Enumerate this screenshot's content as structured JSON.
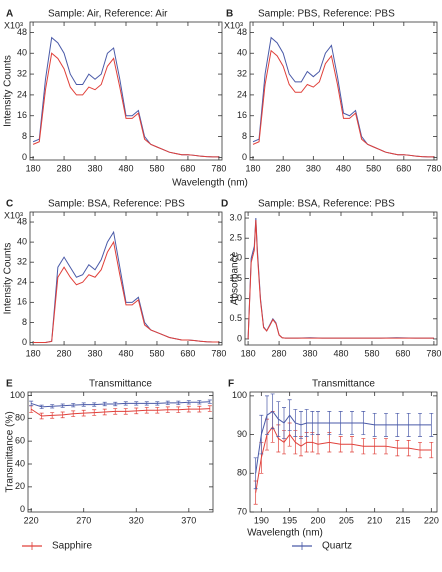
{
  "chart_data": [
    {
      "type": "line",
      "label": "A",
      "title": "Sample: Air, Reference: Air",
      "ylabel": "Intensity Counts",
      "xlabel": "Wavelength (nm)",
      "y_multiplier": "X10³",
      "x": [
        180,
        200,
        220,
        240,
        260,
        280,
        300,
        320,
        340,
        360,
        380,
        400,
        420,
        440,
        460,
        480,
        500,
        520,
        540,
        560,
        580,
        600,
        620,
        640,
        660,
        680,
        700,
        720,
        740,
        760,
        780
      ],
      "series": [
        {
          "color": "#4a5aa8",
          "values": [
            6,
            7,
            30,
            46,
            44,
            40,
            32,
            28,
            28,
            32,
            30,
            32,
            40,
            42,
            30,
            16,
            16,
            18,
            8,
            5,
            4,
            3,
            2,
            1.5,
            1,
            1,
            0.8,
            0.5,
            0.3,
            0.2,
            0.2
          ]
        },
        {
          "color": "#e0403a",
          "values": [
            5,
            6,
            26,
            40,
            38,
            34,
            27,
            24,
            24,
            27,
            26,
            28,
            35,
            38,
            27,
            15,
            15,
            17,
            7,
            5,
            4,
            3,
            2,
            1.5,
            1,
            1,
            0.8,
            0.5,
            0.3,
            0.2,
            0.2
          ]
        }
      ],
      "xlim": [
        170,
        790
      ],
      "ylim": [
        -1,
        52
      ],
      "xticks": [
        180,
        280,
        380,
        480,
        580,
        680,
        780
      ],
      "yticks": [
        0,
        8,
        16,
        24,
        32,
        40,
        48
      ]
    },
    {
      "type": "line",
      "label": "B",
      "title": "Sample: PBS, Reference: PBS",
      "y_multiplier": "X10³",
      "x": [
        180,
        200,
        220,
        240,
        260,
        280,
        300,
        320,
        340,
        360,
        380,
        400,
        420,
        440,
        460,
        480,
        500,
        520,
        540,
        560,
        580,
        600,
        620,
        640,
        660,
        680,
        700,
        720,
        740,
        760,
        780
      ],
      "series": [
        {
          "color": "#4a5aa8",
          "values": [
            6,
            7,
            32,
            46,
            44,
            40,
            32,
            29,
            29,
            33,
            31,
            33,
            40,
            43,
            31,
            17,
            16,
            18,
            8,
            5,
            4,
            3,
            2,
            1.5,
            1,
            1,
            0.8,
            0.5,
            0.3,
            0.2,
            0.2
          ]
        },
        {
          "color": "#e0403a",
          "values": [
            5,
            6,
            28,
            41,
            39,
            35,
            28,
            25,
            25,
            28,
            27,
            29,
            36,
            39,
            28,
            15,
            15,
            17,
            7,
            5,
            4,
            3,
            2,
            1.5,
            1,
            1,
            0.8,
            0.5,
            0.3,
            0.2,
            0.2
          ]
        }
      ],
      "xlim": [
        170,
        790
      ],
      "ylim": [
        -1,
        52
      ],
      "xticks": [
        180,
        280,
        380,
        480,
        580,
        680,
        780
      ],
      "yticks": [
        0,
        8,
        16,
        24,
        32,
        40,
        48
      ]
    },
    {
      "type": "line",
      "label": "C",
      "title": "Sample: BSA, Reference: PBS",
      "ylabel": "Intensity Counts",
      "y_multiplier": "X10³",
      "x": [
        180,
        200,
        220,
        240,
        260,
        280,
        300,
        320,
        340,
        360,
        380,
        400,
        420,
        440,
        460,
        480,
        500,
        520,
        540,
        560,
        580,
        600,
        620,
        640,
        660,
        680,
        700,
        720,
        740,
        760,
        780
      ],
      "series": [
        {
          "color": "#4a5aa8",
          "values": [
            0,
            0,
            0,
            0.5,
            30,
            34,
            30,
            26,
            27,
            31,
            29,
            33,
            40,
            44,
            30,
            16,
            16,
            18,
            8,
            5,
            4,
            3,
            2,
            1.5,
            1,
            1,
            0.8,
            0.5,
            0.3,
            0.2,
            0.2
          ]
        },
        {
          "color": "#e0403a",
          "values": [
            0,
            0,
            0,
            0.4,
            26,
            30,
            26,
            23,
            24,
            27,
            26,
            29,
            36,
            40,
            27,
            15,
            15,
            17,
            7,
            5,
            4,
            3,
            2,
            1.5,
            1,
            1,
            0.8,
            0.5,
            0.3,
            0.2,
            0.2
          ]
        }
      ],
      "xlim": [
        170,
        790
      ],
      "ylim": [
        -1,
        52
      ],
      "xticks": [
        180,
        280,
        380,
        480,
        580,
        680,
        780
      ],
      "yticks": [
        0,
        8,
        16,
        24,
        32,
        40,
        48
      ]
    },
    {
      "type": "line",
      "label": "D",
      "title": "Sample: BSA, Reference: PBS",
      "ylabel": "Absorbance",
      "x": [
        180,
        190,
        200,
        205,
        210,
        220,
        230,
        240,
        250,
        260,
        270,
        280,
        290,
        300,
        340,
        380,
        420,
        480,
        540,
        600,
        660,
        720,
        780
      ],
      "series": [
        {
          "color": "#4a5aa8",
          "values": [
            0,
            2.0,
            2.3,
            3.0,
            2.2,
            1.0,
            0.3,
            0.2,
            0.35,
            0.5,
            0.4,
            0.1,
            0.03,
            0.02,
            0.02,
            0.03,
            0.02,
            0.02,
            0.02,
            0.02,
            0.03,
            0.02,
            0.02
          ]
        },
        {
          "color": "#e0403a",
          "values": [
            0,
            1.9,
            2.2,
            2.95,
            2.1,
            0.95,
            0.28,
            0.2,
            0.33,
            0.48,
            0.38,
            0.1,
            0.03,
            0.02,
            0.02,
            0.02,
            0.02,
            0.02,
            0.02,
            0.02,
            0.02,
            0.02,
            0.02
          ]
        }
      ],
      "xlim": [
        170,
        790
      ],
      "ylim": [
        -0.15,
        3.15
      ],
      "xticks": [
        180,
        280,
        380,
        480,
        580,
        680,
        780
      ],
      "yticks": [
        0,
        0.5,
        {
          "value": 1,
          "label": "1.0"
        },
        1.5,
        {
          "value": 2,
          "label": "2.0"
        },
        2.5,
        {
          "value": 3,
          "label": "3.0"
        }
      ]
    },
    {
      "type": "errorline",
      "label": "E",
      "title": "Transmittance",
      "ylabel": "Transmittance (%)",
      "x": [
        220,
        230,
        240,
        250,
        260,
        270,
        280,
        290,
        300,
        310,
        320,
        330,
        340,
        350,
        360,
        370,
        380,
        390
      ],
      "series": [
        {
          "name": "Sapphire",
          "color": "#e0403a",
          "values": [
            88,
            82,
            82.5,
            83,
            84,
            84.5,
            85,
            85.5,
            86,
            86,
            86.5,
            87,
            87,
            87.5,
            87.5,
            88,
            88,
            88.5
          ],
          "errors": [
            3,
            2.5,
            2.5,
            2.5,
            2.5,
            2.5,
            2.5,
            2.5,
            2.5,
            2.5,
            2.5,
            2.5,
            2.5,
            2.5,
            2.5,
            2.5,
            2.5,
            2.5
          ]
        },
        {
          "name": "Quartz",
          "color": "#4a5aa8",
          "values": [
            93,
            90,
            90.5,
            91,
            91.5,
            92,
            92,
            92.5,
            92.5,
            93,
            93,
            93,
            93,
            93.5,
            93.5,
            94,
            94,
            94.5
          ],
          "errors": [
            2,
            1.5,
            1.5,
            1.5,
            1.5,
            1.5,
            1.5,
            1.5,
            1.5,
            1.5,
            1.5,
            1.5,
            1.5,
            1.5,
            1.5,
            1.5,
            1.5,
            1.5
          ]
        }
      ],
      "xlim": [
        217,
        393
      ],
      "ylim": [
        -2,
        103
      ],
      "xticks": [
        220,
        270,
        320,
        370
      ],
      "yticks": [
        0,
        20,
        40,
        60,
        80,
        100
      ]
    },
    {
      "type": "errorline",
      "label": "F",
      "title": "Transmittance",
      "xlabel": "Wavelength (nm)",
      "x": [
        189,
        190,
        191,
        192,
        193,
        194,
        195,
        196,
        197,
        198,
        199,
        200,
        202,
        204,
        206,
        208,
        210,
        212,
        214,
        216,
        218,
        220
      ],
      "series": [
        {
          "color": "#e0403a",
          "values": [
            75,
            84,
            90,
            92,
            89,
            88,
            90,
            88,
            87,
            88,
            88,
            87.5,
            88,
            87.5,
            87.5,
            87,
            87,
            87,
            86.5,
            86.5,
            86,
            86
          ],
          "errors": [
            3,
            4,
            4,
            4,
            3.5,
            3,
            3,
            3,
            2.5,
            2.5,
            2.5,
            2.5,
            2.5,
            2,
            2,
            2,
            2,
            2,
            2,
            2,
            2,
            2
          ]
        },
        {
          "color": "#4a5aa8",
          "values": [
            80,
            90,
            95,
            96,
            94,
            93,
            95,
            93,
            92.5,
            93,
            93,
            93,
            93,
            93,
            93,
            93,
            92.5,
            92.5,
            92.5,
            92.5,
            92.5,
            92.5
          ],
          "errors": [
            4,
            5,
            5,
            4.5,
            4.5,
            4,
            4,
            3.5,
            3.5,
            3.5,
            3,
            3,
            3,
            3,
            3,
            3,
            3,
            3,
            3,
            3,
            3,
            3
          ]
        }
      ],
      "xlim": [
        188,
        221
      ],
      "ylim": [
        70,
        101
      ],
      "xticks": [
        190,
        195,
        200,
        205,
        210,
        215,
        220
      ],
      "yticks": [
        70,
        80,
        90,
        100
      ]
    }
  ]
}
